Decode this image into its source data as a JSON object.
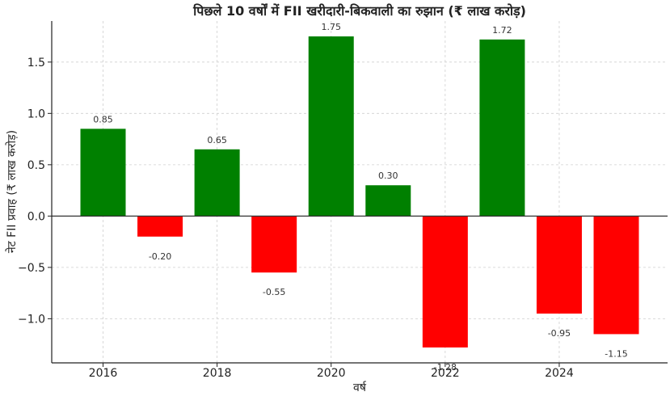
{
  "chart_data": {
    "type": "bar",
    "title": "पिछले 10 वर्षों में FII खरीदारी-बिकवाली का रुझान (₹ लाख करोड़)",
    "xlabel": "वर्ष",
    "ylabel": "नेट FII प्रवाह (₹ लाख करोड़)",
    "categories": [
      "2016",
      "2017",
      "2018",
      "2019",
      "2020",
      "2021",
      "2022",
      "2023",
      "2024",
      "2025"
    ],
    "values": [
      0.85,
      -0.2,
      0.65,
      -0.55,
      1.75,
      0.3,
      -1.28,
      1.72,
      -0.95,
      -1.15
    ],
    "data_labels": [
      "0.85",
      "-0.20",
      "0.65",
      "-0.55",
      "1.75",
      "0.30",
      "-1.28",
      "1.72",
      "-0.95",
      "-1.15"
    ],
    "x_ticks": [
      "2016",
      "2018",
      "2020",
      "2022",
      "2024"
    ],
    "y_ticks": [
      -1.0,
      -0.5,
      0.0,
      0.5,
      1.0,
      1.5
    ],
    "y_tick_labels": [
      "−1.0",
      "−0.5",
      "0.0",
      "0.5",
      "1.0",
      "1.5"
    ],
    "ylim": [
      -1.43,
      1.9
    ],
    "xlim": [
      2015.1,
      2025.9
    ],
    "grid": true,
    "colors": {
      "positive": "#008000",
      "negative": "#ff0000"
    }
  }
}
